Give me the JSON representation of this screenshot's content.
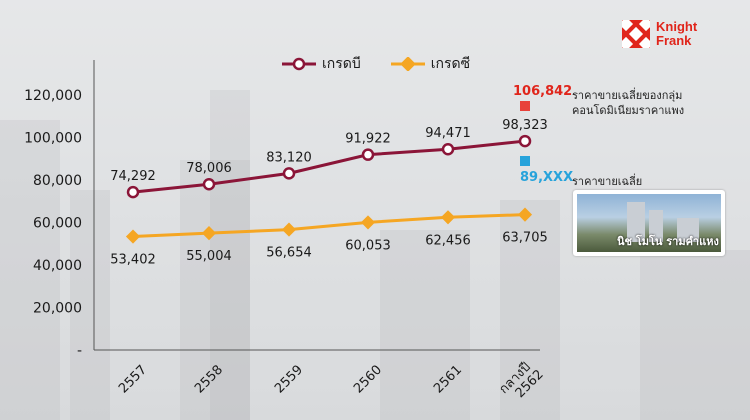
{
  "chart_data": {
    "type": "line",
    "categories": [
      "2557",
      "2558",
      "2559",
      "2560",
      "2561",
      "กลางปี 2562"
    ],
    "series": [
      {
        "name": "เกรดบี",
        "values": [
          74292,
          78006,
          83120,
          91922,
          94471,
          98323
        ],
        "color": "#8b1538",
        "marker": "circle"
      },
      {
        "name": "เกรดซี",
        "values": [
          53402,
          55004,
          56654,
          60053,
          62456,
          63705
        ],
        "color": "#f5a623",
        "marker": "diamond"
      }
    ],
    "y_ticks": [
      "-",
      "20,000",
      "40,000",
      "60,000",
      "80,000",
      "100,000",
      "120,000"
    ],
    "ylim": [
      0,
      120000
    ],
    "grid": false,
    "legend_position": "top-center",
    "b_labels": [
      "74,292",
      "78,006",
      "83,120",
      "91,922",
      "94,471",
      "98,323"
    ],
    "c_labels": [
      "53,402",
      "55,004",
      "56,654",
      "60,053",
      "62,456",
      "63,705"
    ]
  },
  "logo": {
    "line1": "Knight",
    "line2": "Frank",
    "color": "#e0251b"
  },
  "annotations": {
    "luxury_value": "106,842",
    "luxury_label_line1": "ราคาขายเฉลี่ยของกลุ่ม",
    "luxury_label_line2": "คอนโดมิเนียมราคาแพง",
    "luxury_color": "#e8413a",
    "average_value": "89,XXX",
    "average_label": "ราคาขายเฉลี่ย",
    "average_color": "#27a3db",
    "photo_caption": "นิช โมโน รามคำแหง"
  }
}
